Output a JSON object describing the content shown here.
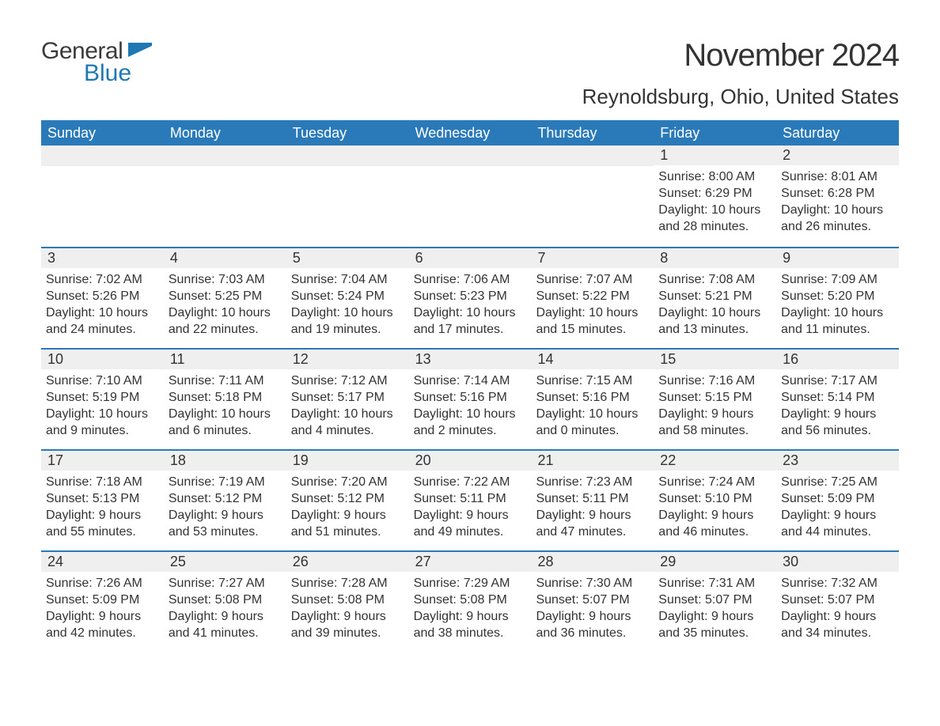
{
  "logo": {
    "text1": "General",
    "text2": "Blue",
    "flag_color": "#1f77b4",
    "text1_color": "#3b3b3b",
    "text2_color": "#1f77b4"
  },
  "title": "November 2024",
  "location": "Reynoldsburg, Ohio, United States",
  "colors": {
    "header_bg": "#2a7ab9",
    "header_text": "#ffffff",
    "daynum_bg": "#efefef",
    "rule": "#2a7ab9",
    "body_text": "#333333",
    "page_bg": "#ffffff"
  },
  "day_headers": [
    "Sunday",
    "Monday",
    "Tuesday",
    "Wednesday",
    "Thursday",
    "Friday",
    "Saturday"
  ],
  "weeks": [
    [
      {
        "day": null
      },
      {
        "day": null
      },
      {
        "day": null
      },
      {
        "day": null
      },
      {
        "day": null
      },
      {
        "day": "1",
        "sunrise": "Sunrise: 8:00 AM",
        "sunset": "Sunset: 6:29 PM",
        "daylight": "Daylight: 10 hours and 28 minutes."
      },
      {
        "day": "2",
        "sunrise": "Sunrise: 8:01 AM",
        "sunset": "Sunset: 6:28 PM",
        "daylight": "Daylight: 10 hours and 26 minutes."
      }
    ],
    [
      {
        "day": "3",
        "sunrise": "Sunrise: 7:02 AM",
        "sunset": "Sunset: 5:26 PM",
        "daylight": "Daylight: 10 hours and 24 minutes."
      },
      {
        "day": "4",
        "sunrise": "Sunrise: 7:03 AM",
        "sunset": "Sunset: 5:25 PM",
        "daylight": "Daylight: 10 hours and 22 minutes."
      },
      {
        "day": "5",
        "sunrise": "Sunrise: 7:04 AM",
        "sunset": "Sunset: 5:24 PM",
        "daylight": "Daylight: 10 hours and 19 minutes."
      },
      {
        "day": "6",
        "sunrise": "Sunrise: 7:06 AM",
        "sunset": "Sunset: 5:23 PM",
        "daylight": "Daylight: 10 hours and 17 minutes."
      },
      {
        "day": "7",
        "sunrise": "Sunrise: 7:07 AM",
        "sunset": "Sunset: 5:22 PM",
        "daylight": "Daylight: 10 hours and 15 minutes."
      },
      {
        "day": "8",
        "sunrise": "Sunrise: 7:08 AM",
        "sunset": "Sunset: 5:21 PM",
        "daylight": "Daylight: 10 hours and 13 minutes."
      },
      {
        "day": "9",
        "sunrise": "Sunrise: 7:09 AM",
        "sunset": "Sunset: 5:20 PM",
        "daylight": "Daylight: 10 hours and 11 minutes."
      }
    ],
    [
      {
        "day": "10",
        "sunrise": "Sunrise: 7:10 AM",
        "sunset": "Sunset: 5:19 PM",
        "daylight": "Daylight: 10 hours and 9 minutes."
      },
      {
        "day": "11",
        "sunrise": "Sunrise: 7:11 AM",
        "sunset": "Sunset: 5:18 PM",
        "daylight": "Daylight: 10 hours and 6 minutes."
      },
      {
        "day": "12",
        "sunrise": "Sunrise: 7:12 AM",
        "sunset": "Sunset: 5:17 PM",
        "daylight": "Daylight: 10 hours and 4 minutes."
      },
      {
        "day": "13",
        "sunrise": "Sunrise: 7:14 AM",
        "sunset": "Sunset: 5:16 PM",
        "daylight": "Daylight: 10 hours and 2 minutes."
      },
      {
        "day": "14",
        "sunrise": "Sunrise: 7:15 AM",
        "sunset": "Sunset: 5:16 PM",
        "daylight": "Daylight: 10 hours and 0 minutes."
      },
      {
        "day": "15",
        "sunrise": "Sunrise: 7:16 AM",
        "sunset": "Sunset: 5:15 PM",
        "daylight": "Daylight: 9 hours and 58 minutes."
      },
      {
        "day": "16",
        "sunrise": "Sunrise: 7:17 AM",
        "sunset": "Sunset: 5:14 PM",
        "daylight": "Daylight: 9 hours and 56 minutes."
      }
    ],
    [
      {
        "day": "17",
        "sunrise": "Sunrise: 7:18 AM",
        "sunset": "Sunset: 5:13 PM",
        "daylight": "Daylight: 9 hours and 55 minutes."
      },
      {
        "day": "18",
        "sunrise": "Sunrise: 7:19 AM",
        "sunset": "Sunset: 5:12 PM",
        "daylight": "Daylight: 9 hours and 53 minutes."
      },
      {
        "day": "19",
        "sunrise": "Sunrise: 7:20 AM",
        "sunset": "Sunset: 5:12 PM",
        "daylight": "Daylight: 9 hours and 51 minutes."
      },
      {
        "day": "20",
        "sunrise": "Sunrise: 7:22 AM",
        "sunset": "Sunset: 5:11 PM",
        "daylight": "Daylight: 9 hours and 49 minutes."
      },
      {
        "day": "21",
        "sunrise": "Sunrise: 7:23 AM",
        "sunset": "Sunset: 5:11 PM",
        "daylight": "Daylight: 9 hours and 47 minutes."
      },
      {
        "day": "22",
        "sunrise": "Sunrise: 7:24 AM",
        "sunset": "Sunset: 5:10 PM",
        "daylight": "Daylight: 9 hours and 46 minutes."
      },
      {
        "day": "23",
        "sunrise": "Sunrise: 7:25 AM",
        "sunset": "Sunset: 5:09 PM",
        "daylight": "Daylight: 9 hours and 44 minutes."
      }
    ],
    [
      {
        "day": "24",
        "sunrise": "Sunrise: 7:26 AM",
        "sunset": "Sunset: 5:09 PM",
        "daylight": "Daylight: 9 hours and 42 minutes."
      },
      {
        "day": "25",
        "sunrise": "Sunrise: 7:27 AM",
        "sunset": "Sunset: 5:08 PM",
        "daylight": "Daylight: 9 hours and 41 minutes."
      },
      {
        "day": "26",
        "sunrise": "Sunrise: 7:28 AM",
        "sunset": "Sunset: 5:08 PM",
        "daylight": "Daylight: 9 hours and 39 minutes."
      },
      {
        "day": "27",
        "sunrise": "Sunrise: 7:29 AM",
        "sunset": "Sunset: 5:08 PM",
        "daylight": "Daylight: 9 hours and 38 minutes."
      },
      {
        "day": "28",
        "sunrise": "Sunrise: 7:30 AM",
        "sunset": "Sunset: 5:07 PM",
        "daylight": "Daylight: 9 hours and 36 minutes."
      },
      {
        "day": "29",
        "sunrise": "Sunrise: 7:31 AM",
        "sunset": "Sunset: 5:07 PM",
        "daylight": "Daylight: 9 hours and 35 minutes."
      },
      {
        "day": "30",
        "sunrise": "Sunrise: 7:32 AM",
        "sunset": "Sunset: 5:07 PM",
        "daylight": "Daylight: 9 hours and 34 minutes."
      }
    ]
  ]
}
